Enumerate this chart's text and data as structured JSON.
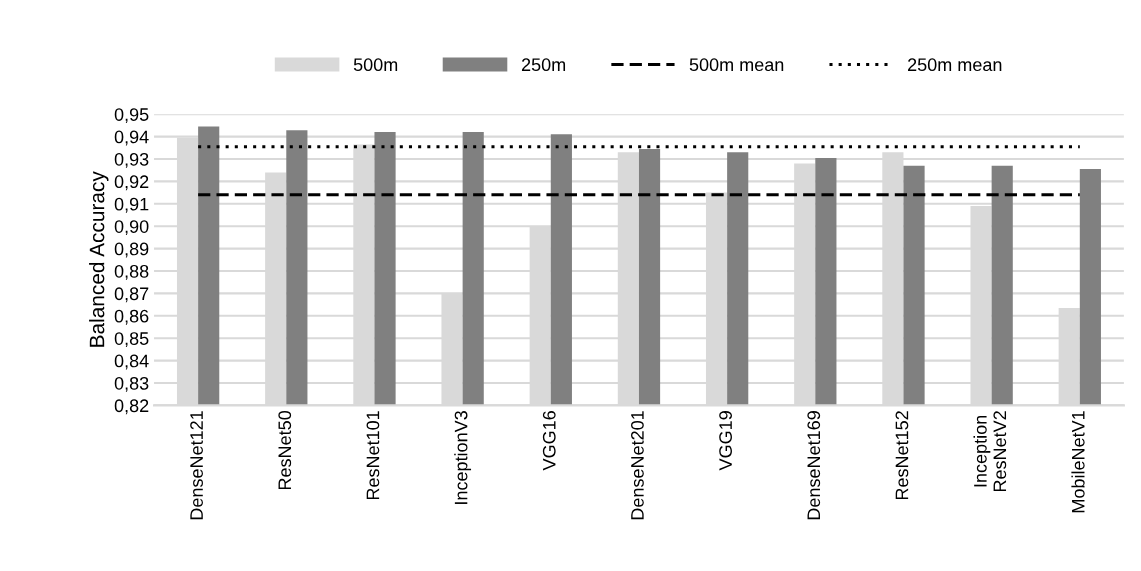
{
  "chart_data": {
    "type": "bar",
    "ylabel": "Balanced Accuracy",
    "categories": [
      "DenseNet121",
      "ResNet50",
      "ResNet101",
      "InceptionV3",
      "VGG16",
      "DenseNet201",
      "VGG19",
      "DenseNet169",
      "ResNet152",
      "Inception\nResNetV2",
      "MobileNetV1"
    ],
    "series": [
      {
        "name": "500m",
        "color": "#d9d9d9",
        "values": [
          0.9395,
          0.924,
          0.9365,
          0.87,
          0.9,
          0.933,
          0.915,
          0.928,
          0.933,
          0.909,
          0.8635
        ]
      },
      {
        "name": "250m",
        "color": "#808080",
        "values": [
          0.9445,
          0.9428,
          0.942,
          0.942,
          0.941,
          0.9345,
          0.933,
          0.9305,
          0.927,
          0.927,
          0.9255
        ]
      },
      {
        "name": "500m mean",
        "type": "line",
        "line_style": "dashed",
        "color": "#000000",
        "values": [
          0.914,
          0.914,
          0.914,
          0.914,
          0.914,
          0.914,
          0.914,
          0.914,
          0.914,
          0.914,
          0.914
        ]
      },
      {
        "name": "250m mean",
        "type": "line",
        "line_style": "dotted",
        "color": "#000000",
        "values": [
          0.9355,
          0.9355,
          0.9355,
          0.9355,
          0.9355,
          0.9355,
          0.9355,
          0.9355,
          0.9355,
          0.9355,
          0.9355
        ]
      }
    ],
    "ylim": [
      0.82,
      0.95
    ],
    "yticks": [
      {
        "value": 0.82,
        "label": "0,82"
      },
      {
        "value": 0.83,
        "label": "0,83"
      },
      {
        "value": 0.84,
        "label": "0,84"
      },
      {
        "value": 0.85,
        "label": "0,85"
      },
      {
        "value": 0.86,
        "label": "0,86"
      },
      {
        "value": 0.87,
        "label": "0,87"
      },
      {
        "value": 0.88,
        "label": "0,88"
      },
      {
        "value": 0.89,
        "label": "0,89"
      },
      {
        "value": 0.9,
        "label": "0,90"
      },
      {
        "value": 0.91,
        "label": "0,91"
      },
      {
        "value": 0.92,
        "label": "0,92"
      },
      {
        "value": 0.93,
        "label": "0,93"
      },
      {
        "value": 0.94,
        "label": "0,94"
      },
      {
        "value": 0.95,
        "label": "0,95"
      }
    ],
    "grid": "y",
    "legend": "top"
  }
}
